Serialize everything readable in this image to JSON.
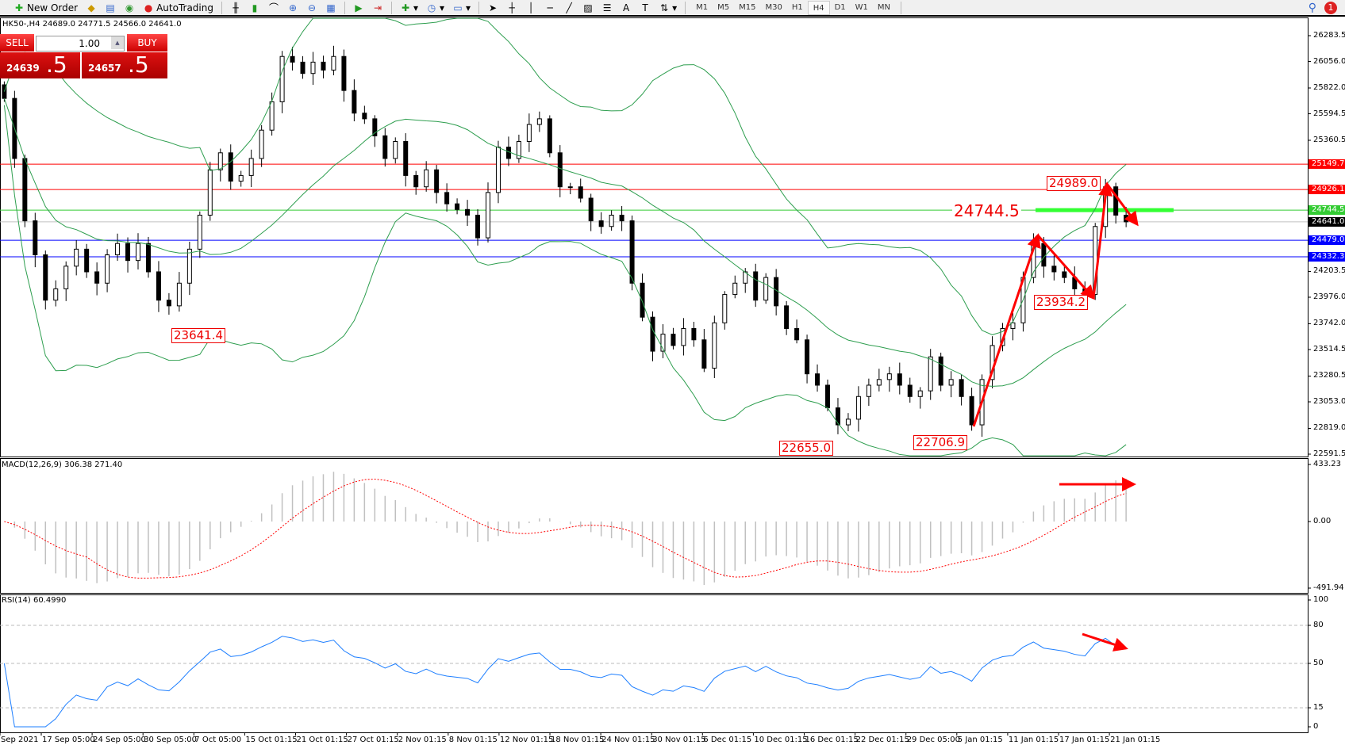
{
  "toolbar": {
    "new_order": "New Order",
    "autotrading": "AutoTrading",
    "timeframes": [
      "M1",
      "M5",
      "M15",
      "M30",
      "H1",
      "H4",
      "D1",
      "W1",
      "MN"
    ],
    "active_timeframe": "H4",
    "notifications": "1"
  },
  "chart_info": "HK50-,H4  24689.0 24771.5 24566.0 24641.0",
  "trade_panel": {
    "sell": "SELL",
    "buy": "BUY",
    "lot": "1.00",
    "bid_main": "24639",
    "bid_frac": ".5",
    "ask_main": "24657",
    "ask_frac": ".5"
  },
  "chart_data": {
    "type": "candlestick",
    "symbol": "HK50-",
    "timeframe": "H4",
    "close": [
      25730,
      25200,
      24650,
      24350,
      23950,
      24050,
      24250,
      24400,
      24200,
      24100,
      24350,
      24450,
      24300,
      24450,
      24200,
      23950,
      23900,
      24100,
      24400,
      24700,
      25100,
      25250,
      25000,
      25050,
      25200,
      25450,
      25700,
      26100,
      26050,
      25950,
      26050,
      25980,
      26100,
      25800,
      25600,
      25550,
      25400,
      25200,
      25350,
      25050,
      24950,
      25100,
      24900,
      24800,
      24750,
      24700,
      24500,
      24900,
      25300,
      25200,
      25350,
      25500,
      25550,
      25250,
      24950,
      24950,
      24850,
      24650,
      24600,
      24700,
      24650,
      24100,
      23800,
      23500,
      23650,
      23550,
      23700,
      23600,
      23350,
      23750,
      24000,
      24100,
      24200,
      23950,
      24150,
      23900,
      23700,
      23600,
      23300,
      23200,
      23000,
      22850,
      22900,
      23100,
      23200,
      23250,
      23300,
      23200,
      23100,
      23150,
      23450,
      23200,
      23250,
      23100,
      22850,
      23250,
      23550,
      23700,
      23750,
      24150,
      24450,
      24250,
      24200,
      24150,
      24050,
      24000,
      24600,
      24950,
      24700,
      24641
    ],
    "price_axis": [
      "26283.5",
      "26056.0",
      "25822.0",
      "25594.5",
      "25360.5",
      "25149.7",
      "24926.1",
      "24744.5",
      "24641.0",
      "24479.0",
      "24332.3",
      "24203.5",
      "23976.0",
      "23742.0",
      "23514.5",
      "23280.5",
      "23053.0",
      "22819.0",
      "22591.5"
    ],
    "price_range": [
      22591.5,
      26283.5
    ],
    "hlines": [
      {
        "value": "25149.7",
        "color": "#ff0000"
      },
      {
        "value": "24926.1",
        "color": "#ff0000"
      },
      {
        "value": "24744.5",
        "color": "#33cc33"
      },
      {
        "value": "24641.0",
        "color": "#000000"
      },
      {
        "value": "24479.0",
        "color": "#0000ff"
      },
      {
        "value": "24332.3",
        "color": "#0000ff"
      }
    ],
    "annotations": [
      "24989.0",
      "24744.5",
      "23934.2",
      "23641.4",
      "22655.0",
      "22706.9"
    ],
    "bollinger_color": "#2e9e4f",
    "macd": {
      "label": "MACD(12,26,9) 306.38 271.40",
      "axis": [
        "433.23",
        "0.00",
        "-491.94"
      ],
      "signal_color": "#ff0000",
      "hist_color": "#c0c0c0"
    },
    "rsi": {
      "label": "RSI(14) 60.4990",
      "axis": [
        "100",
        "80",
        "50",
        "15",
        "0"
      ],
      "levels": [
        80,
        50,
        15
      ],
      "color": "#1e7fff"
    },
    "x_labels": [
      "Sep 2021",
      "17 Sep 05:00",
      "24 Sep 05:00",
      "30 Sep 05:00",
      "7 Oct 05:00",
      "15 Oct 01:15",
      "21 Oct 01:15",
      "27 Oct 01:15",
      "2 Nov 01:15",
      "8 Nov 01:15",
      "12 Nov 01:15",
      "18 Nov 01:15",
      "24 Nov 01:15",
      "30 Nov 01:15",
      "6 Dec 01:15",
      "10 Dec 01:15",
      "16 Dec 01:15",
      "22 Dec 01:15",
      "29 Dec 05:00",
      "5 Jan 01:15",
      "11 Jan 01:15",
      "17 Jan 01:15",
      "21 Jan 01:15"
    ]
  }
}
